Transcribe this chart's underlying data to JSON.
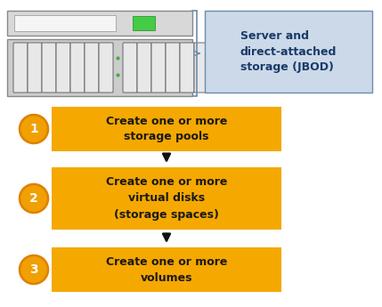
{
  "background_color": "#ffffff",
  "box_color": "#F5A800",
  "box_text_color": "#1a1a1a",
  "circle_color": "#F0A000",
  "circle_border_color": "#E08000",
  "jbod_box_color": "#ccd9e8",
  "jbod_box_border": "#6a8db0",
  "jbod_text_color": "#1a3a6a",
  "arrow_color": "#111111",
  "steps": [
    {
      "num": "1",
      "text": "Create one or more\nstorage pools"
    },
    {
      "num": "2",
      "text": "Create one or more\nvirtual disks\n(storage spaces)"
    },
    {
      "num": "3",
      "text": "Create one or more\nvolumes"
    }
  ],
  "jbod_text": "Server and\ndirect-attached\nstorage (JBOD)"
}
